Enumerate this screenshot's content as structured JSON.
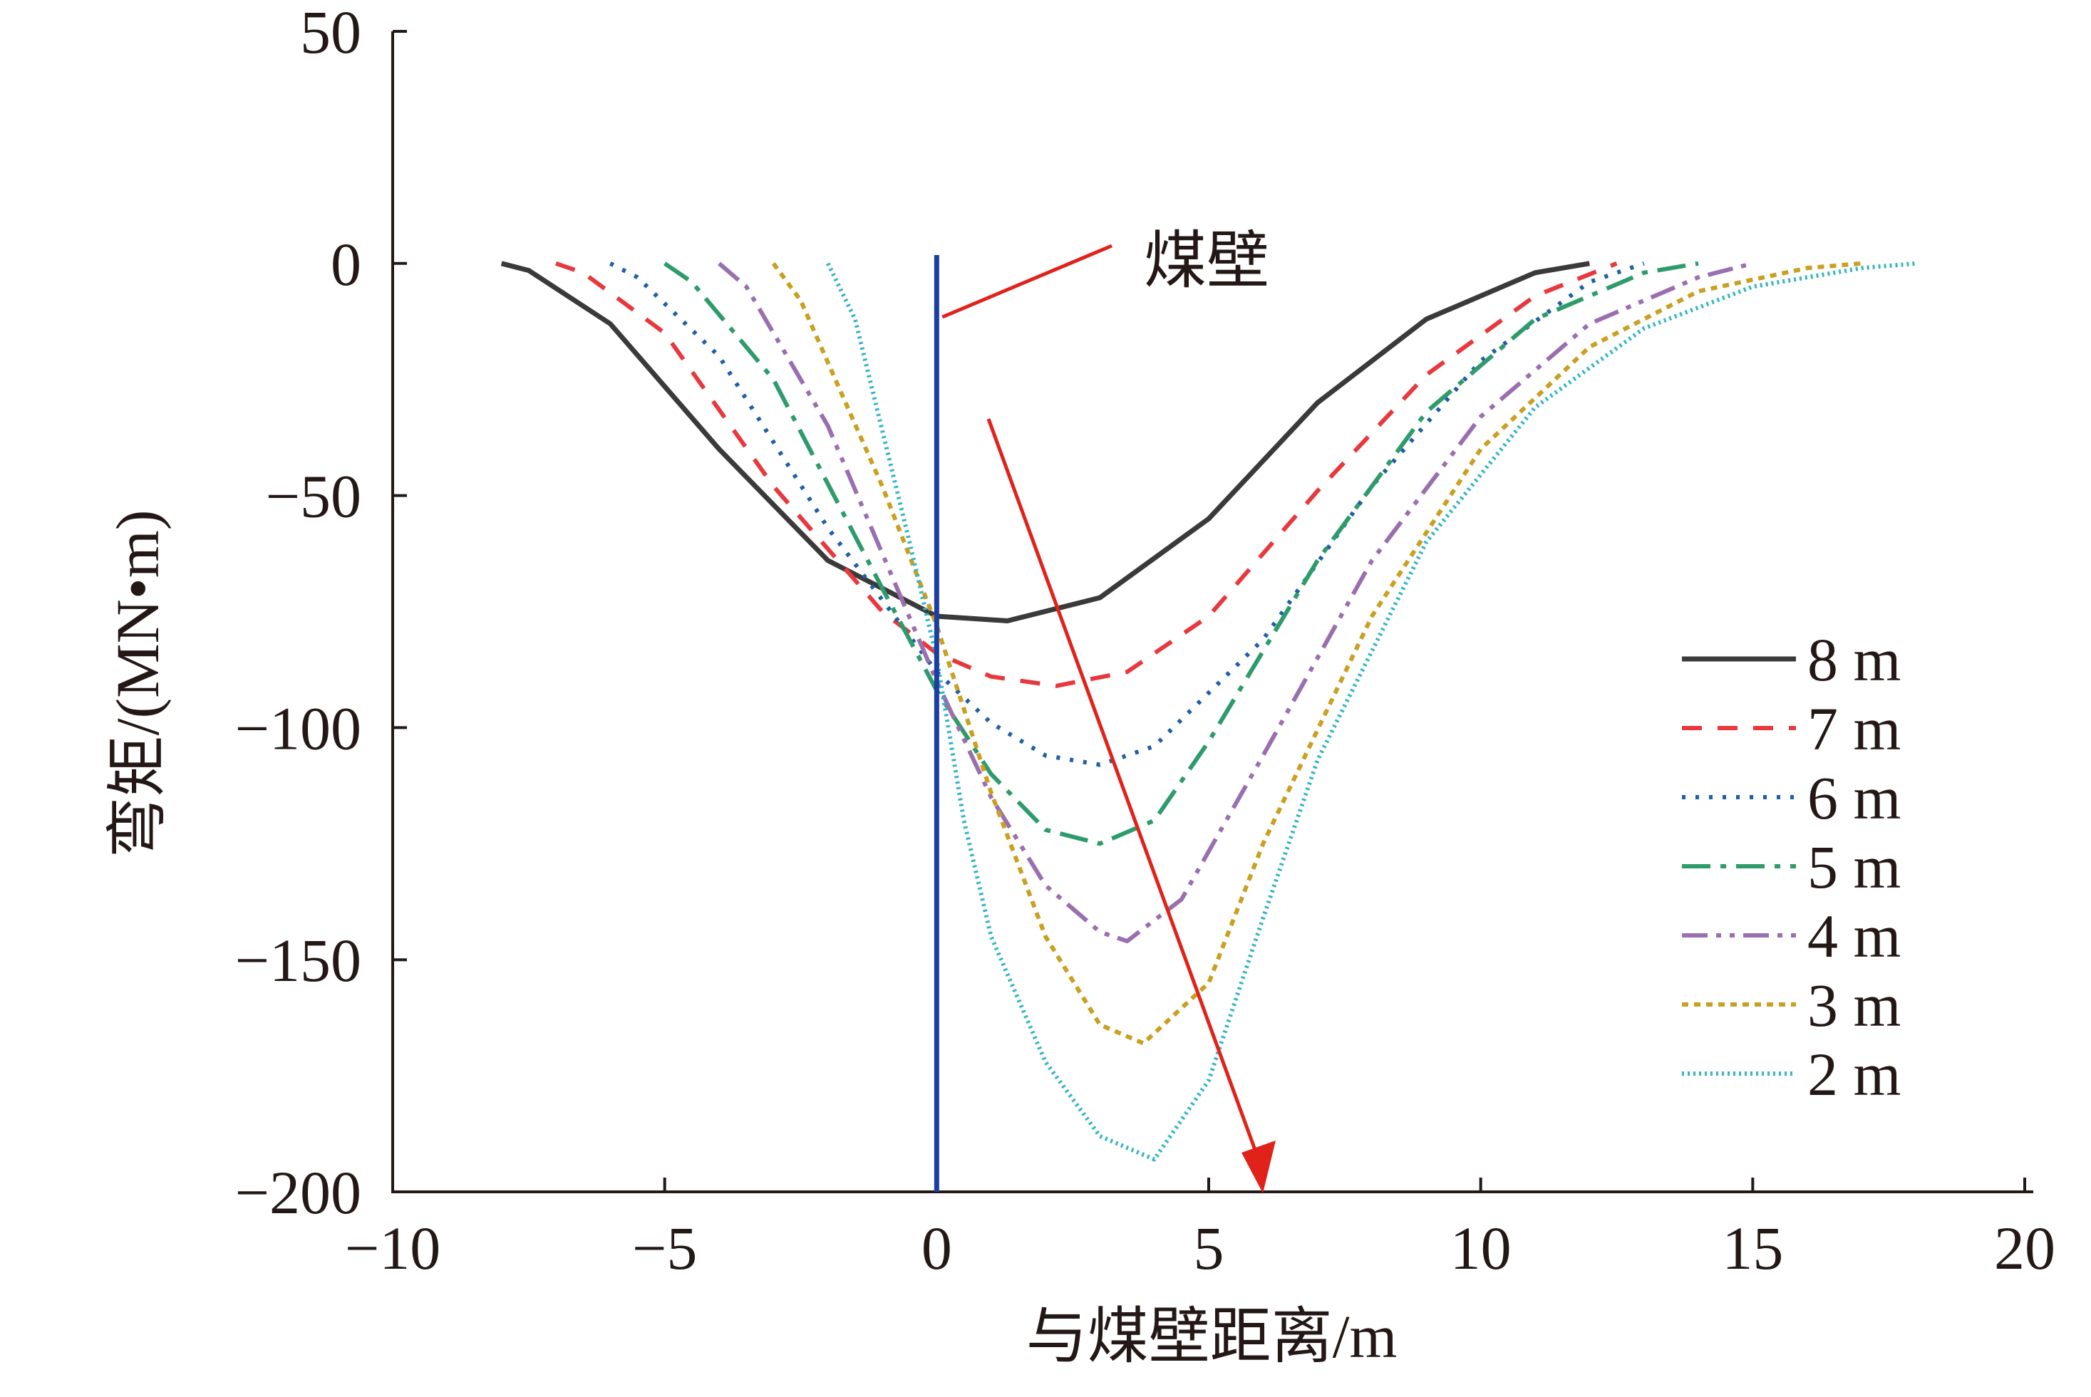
{
  "chart_data": {
    "type": "line",
    "xlabel": "与煤壁距离/m",
    "ylabel": "弯矩/(MN•m)",
    "xlim": [
      -10,
      20
    ],
    "ylim": [
      -200,
      50
    ],
    "x_ticks": [
      -10,
      -5,
      0,
      5,
      10,
      15,
      20
    ],
    "y_ticks": [
      50,
      0,
      -50,
      -100,
      -150,
      -200
    ],
    "x_tick_labels": [
      "−10",
      "−5",
      "0",
      "5",
      "10",
      "15",
      "20"
    ],
    "y_tick_labels": [
      "50",
      "0",
      "−50",
      "−100",
      "−150",
      "−200"
    ],
    "grid": false,
    "legend_position": "right",
    "annotations": {
      "coal_wall_label": "煤壁",
      "coal_wall_x": 0
    },
    "series": [
      {
        "name": "8 m",
        "color": "#3a3a3a",
        "dash": "solid",
        "x": [
          -8,
          -7.5,
          -6,
          -4,
          -2,
          0,
          1.3,
          3,
          5,
          7,
          9,
          11,
          12
        ],
        "y": [
          0,
          -1.5,
          -13,
          -40,
          -64,
          -76,
          -77,
          -72,
          -55,
          -30,
          -12,
          -2,
          0
        ]
      },
      {
        "name": "7 m",
        "color": "#e8383d",
        "dash": "dash",
        "x": [
          -7,
          -6.5,
          -5,
          -3,
          -1,
          0,
          1,
          2.2,
          3.5,
          5,
          7,
          9,
          11,
          12.5
        ],
        "y": [
          0,
          -2,
          -15,
          -48,
          -75,
          -84,
          -89,
          -91,
          -88,
          -76,
          -49,
          -24,
          -7,
          0
        ]
      },
      {
        "name": "6 m",
        "color": "#1f5fa6",
        "dash": "dot",
        "x": [
          -6,
          -5.5,
          -4,
          -2,
          0,
          1,
          2,
          3,
          4,
          6,
          8,
          10,
          12,
          13
        ],
        "y": [
          0,
          -3,
          -20,
          -57,
          -88,
          -99,
          -106,
          -108,
          -104,
          -81,
          -48,
          -21,
          -4,
          0
        ]
      },
      {
        "name": "5 m",
        "color": "#2e9b6b",
        "dash": "dashdot",
        "x": [
          -5,
          -4.5,
          -3,
          -1,
          0,
          1,
          2,
          3,
          4,
          5,
          7,
          9,
          11,
          13,
          14
        ],
        "y": [
          0,
          -4,
          -25,
          -70,
          -92,
          -110,
          -122,
          -125,
          -120,
          -103,
          -64,
          -32,
          -12,
          -2,
          0
        ]
      },
      {
        "name": "4 m",
        "color": "#9a6fb0",
        "dash": "dashdotdot",
        "x": [
          -4,
          -3.5,
          -2,
          0,
          1,
          2,
          3,
          3.5,
          4.5,
          6,
          8,
          10,
          12,
          14,
          15
        ],
        "y": [
          0,
          -5,
          -35,
          -90,
          -115,
          -134,
          -144,
          -146,
          -137,
          -106,
          -64,
          -33,
          -13,
          -3,
          0
        ]
      },
      {
        "name": "3 m",
        "color": "#c9a021",
        "dash": "shortdot",
        "x": [
          -3,
          -2.5,
          -1,
          0,
          1,
          2,
          3,
          3.8,
          5,
          6,
          8,
          10,
          12,
          14,
          16,
          17
        ],
        "y": [
          0,
          -8,
          -48,
          -78,
          -114,
          -145,
          -164,
          -168,
          -155,
          -125,
          -76,
          -40,
          -18,
          -6,
          -1,
          0
        ]
      },
      {
        "name": "2 m",
        "color": "#34b5c6",
        "dash": "finedot",
        "x": [
          -2,
          -1.5,
          -0.5,
          0,
          0.5,
          1,
          2,
          3,
          4,
          5,
          6,
          7,
          9,
          11,
          13,
          15,
          17,
          18
        ],
        "y": [
          0,
          -12,
          -60,
          -85,
          -120,
          -145,
          -172,
          -188,
          -193,
          -176,
          -141,
          -107,
          -60,
          -31,
          -14,
          -5,
          -1,
          0
        ]
      }
    ]
  }
}
